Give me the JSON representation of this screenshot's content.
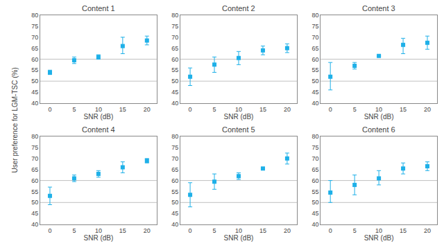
{
  "chart_data": [
    {
      "type": "scatter",
      "title": "Content 1",
      "xlabel": "SNR (dB)",
      "ylabel": "User preference for LGM-TSC (%)",
      "x": [
        0,
        5,
        10,
        15,
        20
      ],
      "values": [
        54,
        59.5,
        61,
        66,
        68.5
      ],
      "yerr_lo": [
        1.0,
        1.5,
        1.0,
        3.5,
        2.0
      ],
      "yerr_hi": [
        1.0,
        1.5,
        1.0,
        4.0,
        2.0
      ],
      "color": "#1EB0E8",
      "marker": "square",
      "hlines": [
        50,
        60
      ],
      "xlim": [
        -2,
        22
      ],
      "xticks": [
        0,
        5,
        10,
        15,
        20
      ],
      "ylim": [
        40,
        80
      ],
      "yticks": [
        40,
        45,
        50,
        55,
        60,
        65,
        70,
        75,
        80
      ],
      "grid": false
    },
    {
      "type": "scatter",
      "title": "Content 2",
      "xlabel": "SNR (dB)",
      "x": [
        0,
        5,
        10,
        15,
        20
      ],
      "values": [
        52,
        57.5,
        60.5,
        64,
        65
      ],
      "yerr_lo": [
        4.0,
        3.5,
        3.0,
        2.0,
        2.0
      ],
      "yerr_hi": [
        4.0,
        3.5,
        3.0,
        2.0,
        2.0
      ],
      "color": "#1EB0E8",
      "marker": "square",
      "hlines": [
        50,
        60
      ],
      "xlim": [
        -2,
        22
      ],
      "xticks": [
        0,
        5,
        10,
        15,
        20
      ],
      "ylim": [
        40,
        80
      ],
      "yticks": [
        40,
        45,
        50,
        55,
        60,
        65,
        70,
        75,
        80
      ],
      "grid": false
    },
    {
      "type": "scatter",
      "title": "Content 3",
      "xlabel": "SNR (dB)",
      "x": [
        0,
        5,
        10,
        15,
        20
      ],
      "values": [
        52,
        57,
        61.5,
        66.5,
        67.5
      ],
      "yerr_lo": [
        6.0,
        1.5,
        0.2,
        4.0,
        3.0
      ],
      "yerr_hi": [
        6.5,
        1.5,
        0.2,
        3.0,
        3.0
      ],
      "color": "#1EB0E8",
      "marker": "square",
      "hlines": [
        50,
        60
      ],
      "xlim": [
        -2,
        22
      ],
      "xticks": [
        0,
        5,
        10,
        15,
        20
      ],
      "ylim": [
        40,
        80
      ],
      "yticks": [
        40,
        45,
        50,
        55,
        60,
        65,
        70,
        75,
        80
      ],
      "grid": false
    },
    {
      "type": "scatter",
      "title": "Content 4",
      "xlabel": "SNR (dB)",
      "x": [
        0,
        5,
        10,
        15,
        20
      ],
      "values": [
        53,
        61,
        63,
        66,
        69
      ],
      "yerr_lo": [
        4.0,
        1.5,
        1.5,
        2.5,
        1.0
      ],
      "yerr_hi": [
        4.0,
        1.5,
        1.5,
        2.5,
        1.0
      ],
      "color": "#1EB0E8",
      "marker": "square",
      "hlines": [
        50,
        60
      ],
      "xlim": [
        -2,
        22
      ],
      "xticks": [
        0,
        5,
        10,
        15,
        20
      ],
      "ylim": [
        40,
        80
      ],
      "yticks": [
        40,
        45,
        50,
        55,
        60,
        65,
        70,
        75,
        80
      ],
      "grid": false
    },
    {
      "type": "scatter",
      "title": "Content 5",
      "xlabel": "SNR (dB)",
      "x": [
        0,
        5,
        10,
        15,
        20
      ],
      "values": [
        53.5,
        59.5,
        62,
        65.5,
        70
      ],
      "yerr_lo": [
        5.5,
        3.5,
        1.5,
        0.2,
        2.5
      ],
      "yerr_hi": [
        5.5,
        3.5,
        1.5,
        0.2,
        2.5
      ],
      "color": "#1EB0E8",
      "marker": "square",
      "hlines": [
        50,
        60
      ],
      "xlim": [
        -2,
        22
      ],
      "xticks": [
        0,
        5,
        10,
        15,
        20
      ],
      "ylim": [
        40,
        80
      ],
      "yticks": [
        40,
        45,
        50,
        55,
        60,
        65,
        70,
        75,
        80
      ],
      "grid": false
    },
    {
      "type": "scatter",
      "title": "Content 6",
      "xlabel": "SNR (dB)",
      "x": [
        0,
        5,
        10,
        15,
        20
      ],
      "values": [
        54.5,
        58,
        61,
        65.5,
        66.5
      ],
      "yerr_lo": [
        4.5,
        4.5,
        3.0,
        2.5,
        2.0
      ],
      "yerr_hi": [
        5.5,
        4.5,
        3.5,
        2.5,
        2.0
      ],
      "color": "#1EB0E8",
      "marker": "square",
      "hlines": [
        50,
        60
      ],
      "xlim": [
        -2,
        22
      ],
      "xticks": [
        0,
        5,
        10,
        15,
        20
      ],
      "ylim": [
        40,
        80
      ],
      "yticks": [
        40,
        45,
        50,
        55,
        60,
        65,
        70,
        75,
        80
      ],
      "grid": false
    }
  ]
}
